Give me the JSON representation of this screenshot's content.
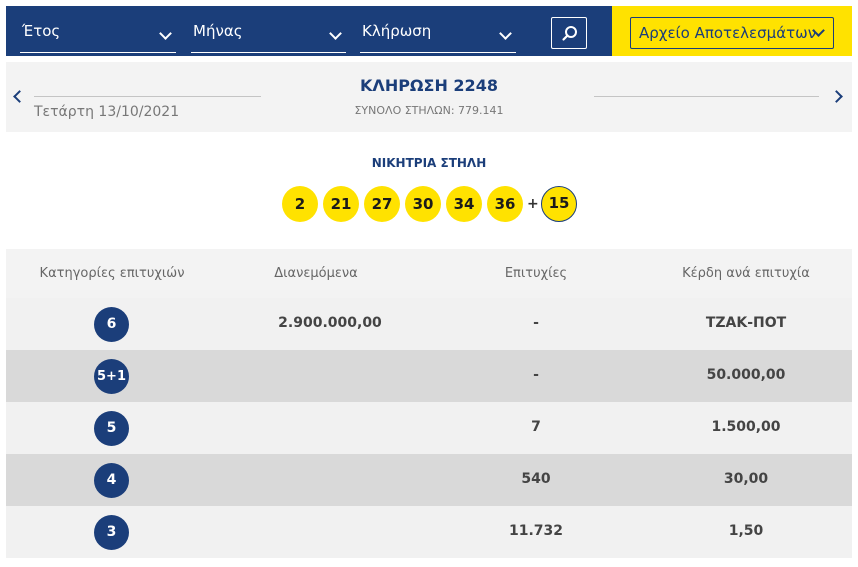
{
  "filters": {
    "year_label": "Έτος",
    "month_label": "Μήνας",
    "draw_label": "Κλήρωση",
    "search_icon": "search-icon"
  },
  "archive": {
    "label": "Αρχείο Αποτελεσμάτων"
  },
  "draw": {
    "date": "Τετάρτη 13/10/2021",
    "title": "ΚΛΗΡΩΣΗ 2248",
    "subtitle": "ΣΥΝΟΛΟ ΣΤΗΛΩΝ: 779.141"
  },
  "winning": {
    "label": "ΝΙΚΗΤΡΙΑ ΣΤΗΛΗ",
    "numbers": [
      "2",
      "21",
      "27",
      "30",
      "34",
      "36"
    ],
    "plus": "+",
    "bonus": "15"
  },
  "table": {
    "headers": [
      "Κατηγορίες επιτυχιών",
      "Διανεμόμενα",
      "Επιτυχίες",
      "Κέρδη ανά επιτυχία"
    ],
    "rows": [
      {
        "category": "6",
        "distributed": "2.900.000,00",
        "winners": "-",
        "prize": "ΤΖΑΚ-ΠΟΤ"
      },
      {
        "category": "5+1",
        "distributed": "",
        "winners": "-",
        "prize": "50.000,00"
      },
      {
        "category": "5",
        "distributed": "",
        "winners": "7",
        "prize": "1.500,00"
      },
      {
        "category": "4",
        "distributed": "",
        "winners": "540",
        "prize": "30,00"
      },
      {
        "category": "3",
        "distributed": "",
        "winners": "11.732",
        "prize": "1,50"
      }
    ]
  },
  "colors": {
    "navy": "#1b3e7a",
    "yellow": "#ffe200"
  }
}
